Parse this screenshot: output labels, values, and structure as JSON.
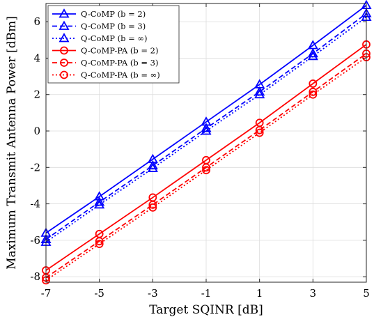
{
  "chart_data": {
    "type": "line",
    "xlabel": "Target SQINR [dB]",
    "ylabel": "Maximum Transmit Antenna Power [dBm]",
    "x": [
      -7,
      -5,
      -3,
      -1,
      1,
      3,
      5
    ],
    "xticks": [
      "-7",
      "-5",
      "-3",
      "-1",
      "1",
      "3",
      "5"
    ],
    "yticks": [
      "-8",
      "-6",
      "-4",
      "-2",
      "0",
      "2",
      "4",
      "6"
    ],
    "xlim": [
      -7,
      5
    ],
    "ylim": [
      -8.3,
      7
    ],
    "grid": true,
    "legend_position": "top-left",
    "series": [
      {
        "name": "Q-CoMP (b = 2)",
        "color": "#0000FF",
        "dash": "solid",
        "marker": "triangle",
        "values": [
          -5.6,
          -3.6,
          -1.55,
          0.5,
          2.55,
          4.7,
          6.9
        ]
      },
      {
        "name": "Q-CoMP (b = 3)",
        "color": "#0000FF",
        "dash": "dashed",
        "marker": "triangle",
        "values": [
          -5.95,
          -3.9,
          -1.9,
          0.15,
          2.15,
          4.25,
          6.45
        ]
      },
      {
        "name": "Q-CoMP (b = ∞)",
        "color": "#0000FF",
        "dash": "dotted",
        "marker": "triangle",
        "values": [
          -6.1,
          -4.05,
          -2.05,
          0.0,
          2.0,
          4.1,
          6.25
        ]
      },
      {
        "name": "Q-CoMP-PA (b = 2)",
        "color": "#FF0000",
        "dash": "solid",
        "marker": "circle",
        "values": [
          -7.65,
          -5.65,
          -3.65,
          -1.6,
          0.45,
          2.6,
          4.75
        ]
      },
      {
        "name": "Q-CoMP-PA (b = 3)",
        "color": "#FF0000",
        "dash": "dashed",
        "marker": "circle",
        "values": [
          -8.05,
          -6.05,
          -4.05,
          -2.0,
          0.05,
          2.15,
          4.25
        ]
      },
      {
        "name": "Q-CoMP-PA (b = ∞)",
        "color": "#FF0000",
        "dash": "dotted",
        "marker": "circle",
        "values": [
          -8.2,
          -6.2,
          -4.2,
          -2.15,
          -0.1,
          2.0,
          4.05
        ]
      }
    ]
  }
}
